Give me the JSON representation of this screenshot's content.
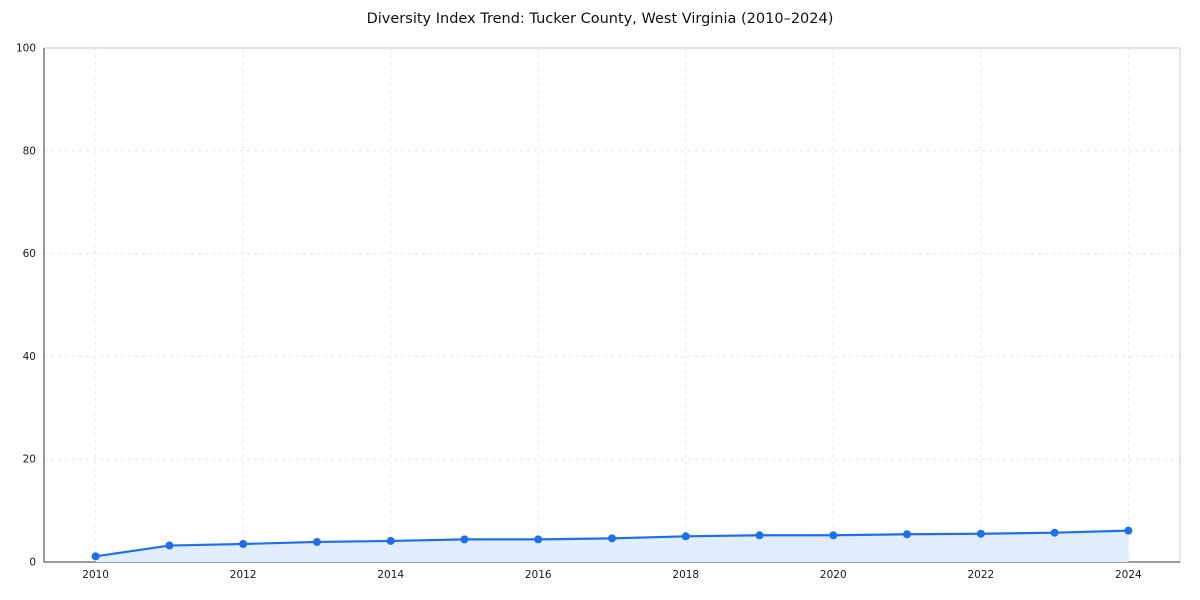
{
  "title": "Diversity Index Trend: Tucker County, West Virginia (2010–2024)",
  "chart_data": {
    "type": "line",
    "x": [
      2010,
      2011,
      2012,
      2013,
      2014,
      2015,
      2016,
      2017,
      2018,
      2019,
      2020,
      2021,
      2022,
      2023,
      2024
    ],
    "series": [
      {
        "name": "Diversity Index",
        "values": [
          1.1,
          3.2,
          3.5,
          3.9,
          4.1,
          4.4,
          4.4,
          4.6,
          5.0,
          5.2,
          5.2,
          5.4,
          5.5,
          5.7,
          6.1
        ]
      }
    ],
    "title": "Diversity Index Trend: Tucker County, West Virginia (2010–2024)",
    "xlabel": "",
    "ylabel": "",
    "xticks": [
      2010,
      2012,
      2014,
      2016,
      2018,
      2020,
      2022,
      2024
    ],
    "yticks": [
      0,
      20,
      40,
      60,
      80,
      100
    ],
    "ylim": [
      0,
      100
    ],
    "grid": true,
    "legend": "none",
    "colors": {
      "line": "#1f6feb",
      "marker": "#1f6feb",
      "fill": "#e2edfb"
    }
  }
}
